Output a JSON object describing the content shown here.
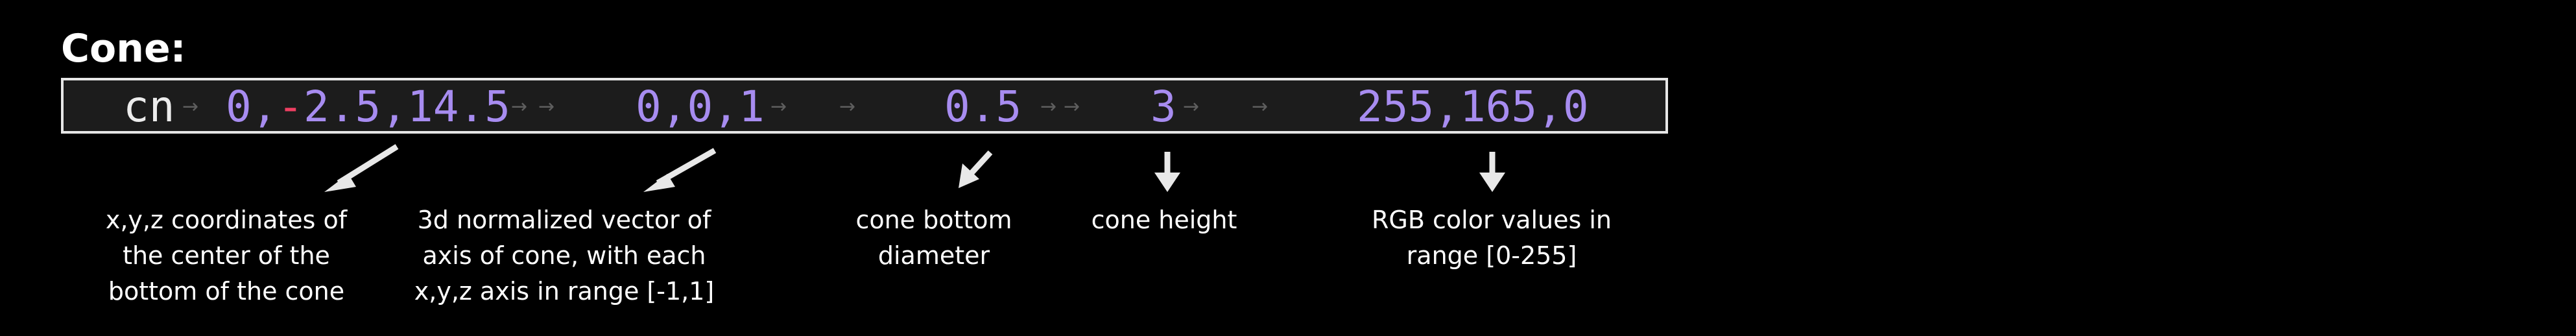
{
  "title": "Cone:",
  "command": {
    "name": "cn",
    "center": {
      "x": "0",
      "sep1": ",",
      "minus": "-",
      "y": "2.5",
      "sep2": ",",
      "z": "14.5"
    },
    "axis": "0,0,1",
    "diameter": "0.5",
    "height": "3",
    "color": "255,165,0"
  },
  "tab_glyph": "→",
  "annotations": [
    {
      "id": "center",
      "text": "x,y,z coordinates of\nthe center of the\nbottom of the cone"
    },
    {
      "id": "axis",
      "text": "3d normalized vector of\naxis of cone, with each\nx,y,z axis in range [-1,1]"
    },
    {
      "id": "diameter",
      "text": "cone bottom\ndiameter"
    },
    {
      "id": "height",
      "text": "cone height"
    },
    {
      "id": "color",
      "text": "RGB color values in\nrange [0-255]"
    }
  ],
  "colors": {
    "background": "#000000",
    "code_background": "#1c1c1c",
    "code_border": "#e6e6e6",
    "command": "#ececec",
    "number": "#a78cf0",
    "negative_sign": "#ee3f62",
    "tab_arrow": "#5e5e5e",
    "annotation_arrow": "#e8e8e8",
    "text": "#ffffff"
  }
}
